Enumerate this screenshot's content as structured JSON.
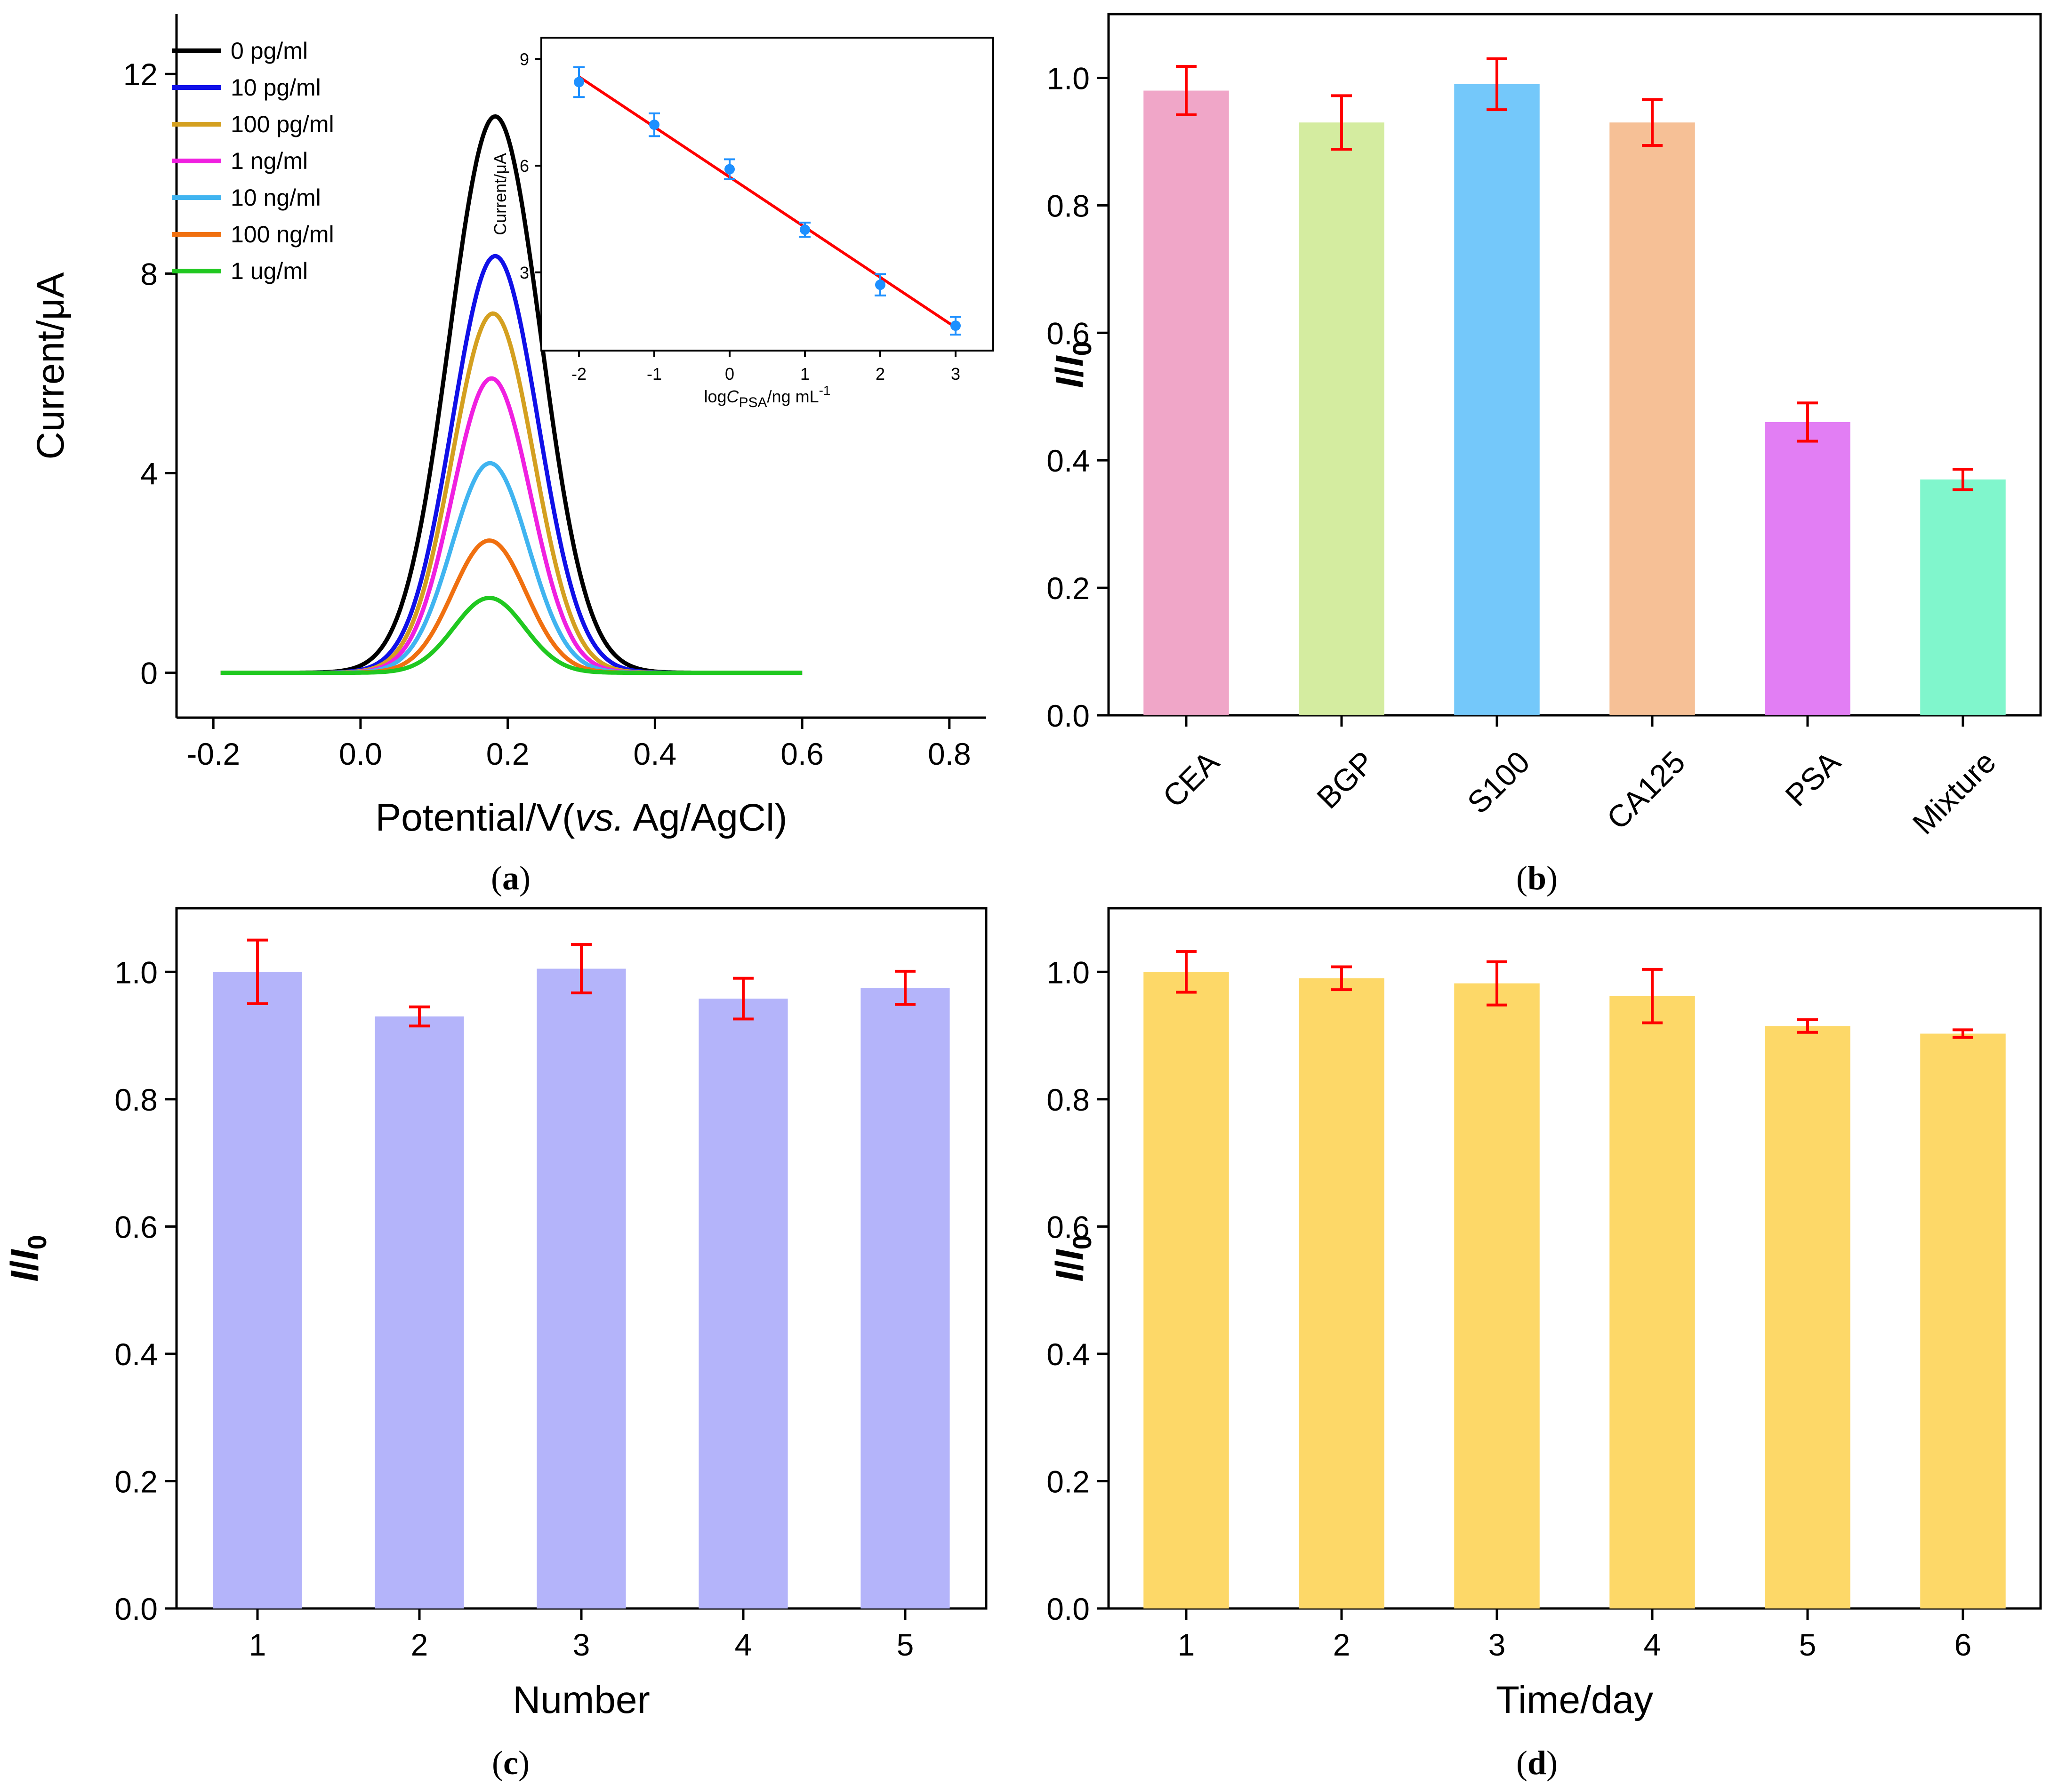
{
  "chart_data": [
    {
      "panel": "a",
      "type": "line",
      "label": "(a)",
      "xlabel": "Potential/V(vs. Ag/AgCl)",
      "xlabel_parts": [
        "Potential/V(",
        "vs.",
        " Ag/AgCl)"
      ],
      "ylabel": "Current/μA",
      "xlim": [
        -0.25,
        0.85
      ],
      "ylim": [
        -0.9,
        13.2
      ],
      "xticks": [
        -0.2,
        0.0,
        0.2,
        0.4,
        0.6,
        0.8
      ],
      "xtick_labels": [
        "-0.2",
        "0.0",
        "0.2",
        "0.4",
        "0.6",
        "0.8"
      ],
      "yticks": [
        0,
        4,
        8,
        12
      ],
      "ytick_labels": [
        "0",
        "4",
        "8",
        "12"
      ],
      "x_range": [
        -0.19,
        0.6
      ],
      "series": [
        {
          "name": "0 pg/ml",
          "color": "#000000",
          "peak": 11.15,
          "center": 0.183,
          "sigma": 0.062
        },
        {
          "name": "10 pg/ml",
          "color": "#1010e8",
          "peak": 8.35,
          "center": 0.183,
          "sigma": 0.058
        },
        {
          "name": "100 pg/ml",
          "color": "#d4a020",
          "peak": 7.2,
          "center": 0.18,
          "sigma": 0.055
        },
        {
          "name": "1 ng/ml",
          "color": "#f020e0",
          "peak": 5.9,
          "center": 0.178,
          "sigma": 0.053
        },
        {
          "name": "10 ng/ml",
          "color": "#40b4f0",
          "peak": 4.2,
          "center": 0.176,
          "sigma": 0.052
        },
        {
          "name": "100 ng/ml",
          "color": "#f07010",
          "peak": 2.65,
          "center": 0.175,
          "sigma": 0.05
        },
        {
          "name": "1 ug/ml",
          "color": "#20c820",
          "peak": 1.5,
          "center": 0.175,
          "sigma": 0.048
        }
      ],
      "inset": {
        "type": "scatter",
        "xlabel": "logCPSA/ng mL-1",
        "xlabel_parts": [
          "log",
          "C",
          "PSA",
          "/ng mL",
          "-1"
        ],
        "ylabel": "Current/μA",
        "xlim": [
          -2.5,
          3.5
        ],
        "ylim": [
          0.8,
          9.6
        ],
        "xticks": [
          -2,
          -1,
          0,
          1,
          2,
          3
        ],
        "xtick_labels": [
          "-2",
          "-1",
          "0",
          "1",
          "2",
          "3"
        ],
        "yticks": [
          3,
          6,
          9
        ],
        "ytick_labels": [
          "3",
          "6",
          "9"
        ],
        "x": [
          -2,
          -1,
          0,
          1,
          2,
          3
        ],
        "y": [
          8.35,
          7.15,
          5.9,
          4.2,
          2.65,
          1.5
        ],
        "yerr": [
          0.42,
          0.32,
          0.28,
          0.2,
          0.3,
          0.25
        ],
        "fit": {
          "x": [
            -2,
            3
          ],
          "y": [
            8.5,
            1.45
          ]
        },
        "point_color": "#1e90ff",
        "fit_color": "#ff0000"
      }
    },
    {
      "panel": "b",
      "type": "bar",
      "label": "(b)",
      "xlabel": "",
      "ylabel": "I/I0",
      "ylabel_parts": [
        "I",
        "/",
        "I",
        "0"
      ],
      "ylim": [
        0,
        1.1
      ],
      "yticks": [
        0,
        0.2,
        0.4,
        0.6,
        0.8,
        1.0
      ],
      "ytick_labels": [
        "0.0",
        "0.2",
        "0.4",
        "0.6",
        "0.8",
        "1.0"
      ],
      "categories": [
        "CEA",
        "BGP",
        "S100",
        "CA125",
        "PSA",
        "Mixture"
      ],
      "values": [
        0.98,
        0.93,
        0.99,
        0.93,
        0.46,
        0.37
      ],
      "errors": [
        0.038,
        0.042,
        0.04,
        0.036,
        0.03,
        0.016
      ],
      "colors": [
        "#f0a6c8",
        "#d4eca0",
        "#74c8fa",
        "#f6c096",
        "#e27ef4",
        "#80f6cc"
      ],
      "rotate_labels": true
    },
    {
      "panel": "c",
      "type": "bar",
      "label": "(c)",
      "xlabel": "Number",
      "ylabel": "I/I0",
      "ylabel_parts": [
        "I",
        "/",
        "I",
        "0"
      ],
      "ylim": [
        0,
        1.1
      ],
      "yticks": [
        0,
        0.2,
        0.4,
        0.6,
        0.8,
        1.0
      ],
      "ytick_labels": [
        "0.0",
        "0.2",
        "0.4",
        "0.6",
        "0.8",
        "1.0"
      ],
      "categories": [
        "1",
        "2",
        "3",
        "4",
        "5"
      ],
      "values": [
        1.0,
        0.93,
        1.005,
        0.958,
        0.975
      ],
      "errors": [
        0.05,
        0.015,
        0.038,
        0.032,
        0.026
      ],
      "colors": [
        "#b4b4fa",
        "#b4b4fa",
        "#b4b4fa",
        "#b4b4fa",
        "#b4b4fa"
      ],
      "rotate_labels": false
    },
    {
      "panel": "d",
      "type": "bar",
      "label": "(d)",
      "xlabel": "Time/day",
      "ylabel": "I/I0",
      "ylabel_parts": [
        "I",
        "/",
        "I",
        "0"
      ],
      "ylim": [
        0,
        1.1
      ],
      "yticks": [
        0,
        0.2,
        0.4,
        0.6,
        0.8,
        1.0
      ],
      "ytick_labels": [
        "0.0",
        "0.2",
        "0.4",
        "0.6",
        "0.8",
        "1.0"
      ],
      "categories": [
        "1",
        "2",
        "3",
        "4",
        "5",
        "6"
      ],
      "values": [
        1.0,
        0.99,
        0.982,
        0.962,
        0.915,
        0.903
      ],
      "errors": [
        0.032,
        0.018,
        0.034,
        0.042,
        0.01,
        0.006
      ],
      "colors": [
        "#fdd868",
        "#fdd868",
        "#fdd868",
        "#fdd868",
        "#fdd868",
        "#fdd868"
      ],
      "rotate_labels": false
    }
  ]
}
